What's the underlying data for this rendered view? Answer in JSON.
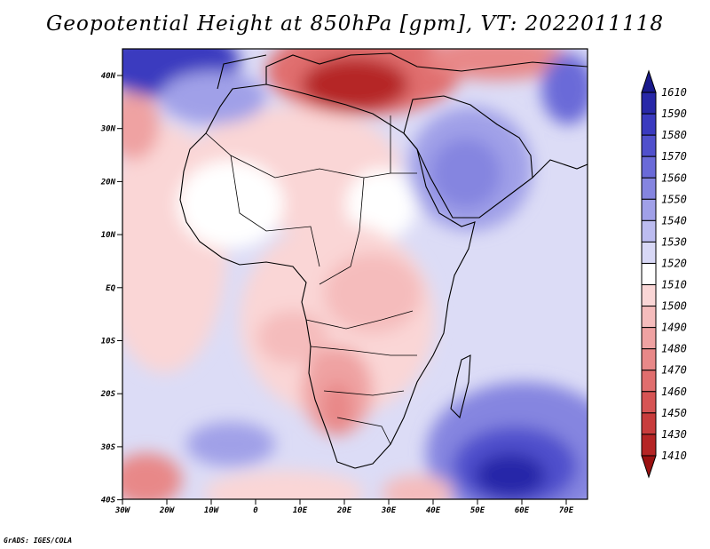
{
  "title": "Geopotential Height at 850hPa [gpm], VT: 2022011118",
  "credit": "GrADS: IGES/COLA",
  "lat_ticks": [
    "40N",
    "30N",
    "20N",
    "10N",
    "EQ",
    "10S",
    "20S",
    "30S",
    "40S"
  ],
  "lon_ticks": [
    "30W",
    "20W",
    "10W",
    "0",
    "10E",
    "20E",
    "30E",
    "40E",
    "50E",
    "60E",
    "70E"
  ],
  "colorbar": {
    "labels": [
      "1610",
      "1590",
      "1580",
      "1570",
      "1560",
      "1550",
      "1540",
      "1530",
      "1520",
      "1510",
      "1500",
      "1490",
      "1480",
      "1470",
      "1460",
      "1450",
      "1430",
      "1410"
    ],
    "colors": [
      "#1a1a8c",
      "#2828a8",
      "#3a3abf",
      "#5050cc",
      "#6a6ad8",
      "#8585e0",
      "#a0a0e8",
      "#bcbcf0",
      "#d8d8f6",
      "#ffffff",
      "#fad6d6",
      "#f5bcbc",
      "#efa2a2",
      "#e88888",
      "#e06e6e",
      "#d65454",
      "#c83c3c",
      "#b52525",
      "#9a1010"
    ]
  }
}
